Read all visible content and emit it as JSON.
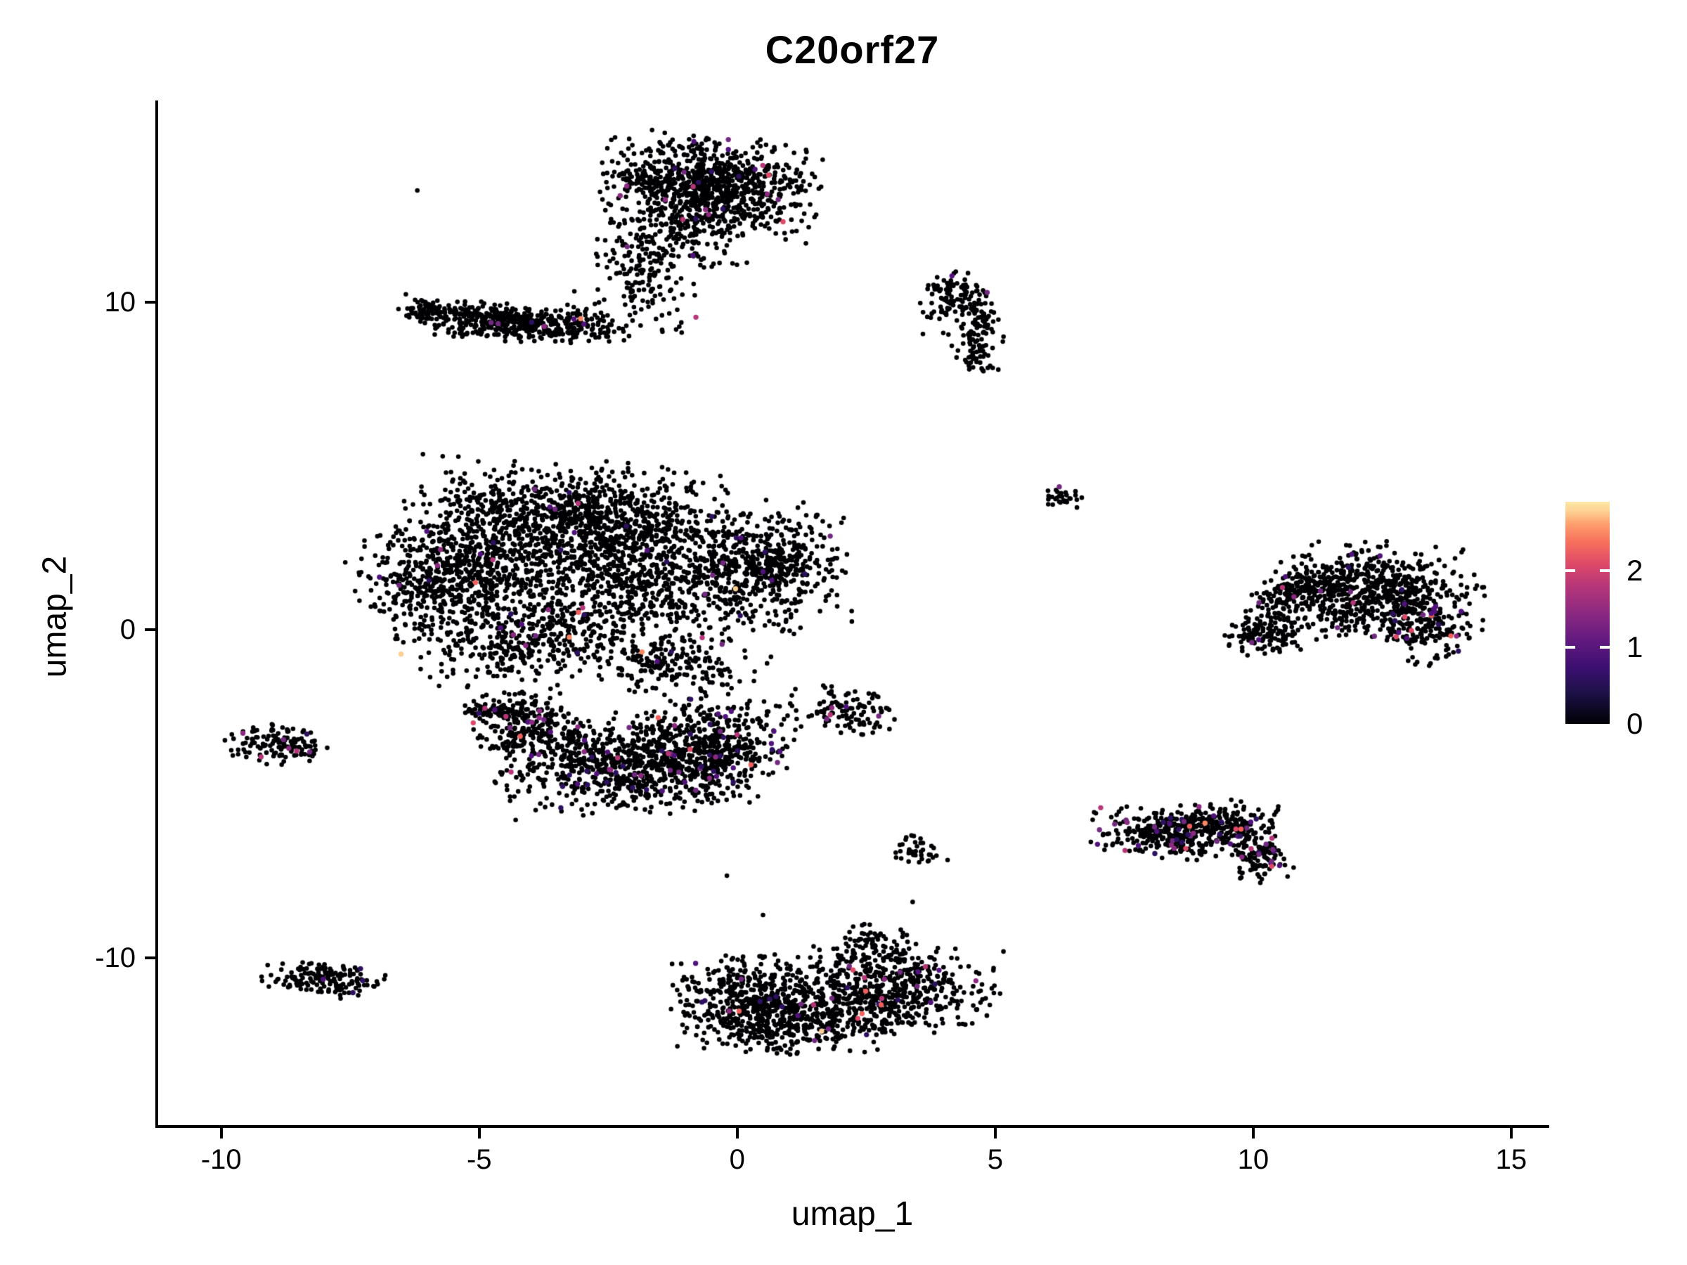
{
  "chart_data": {
    "type": "scatter",
    "title": "C20orf27",
    "xlabel": "umap_1",
    "ylabel": "umap_2",
    "x_ticks": [
      -10,
      -5,
      0,
      5,
      10,
      15
    ],
    "y_ticks": [
      -10,
      0,
      10
    ],
    "x_domain": [
      -11.25,
      15.71
    ],
    "y_domain": [
      -15.15,
      16.1
    ],
    "grid": false,
    "point_radius_px": 3.3,
    "point_color_default": "#000004",
    "colorbar": {
      "labels": [
        0,
        1,
        2
      ],
      "max_value": 2.9,
      "tick_dash_color": "#ffffff",
      "gradient_stops": [
        [
          0.0,
          "#000004"
        ],
        [
          0.14,
          "#1D1147"
        ],
        [
          0.25,
          "#3B0F70"
        ],
        [
          0.38,
          "#641A80"
        ],
        [
          0.5,
          "#8C2981"
        ],
        [
          0.62,
          "#B63679"
        ],
        [
          0.72,
          "#DE4968"
        ],
        [
          0.82,
          "#F7705C"
        ],
        [
          0.9,
          "#FE9F6D"
        ],
        [
          0.96,
          "#FED395"
        ],
        [
          1.0,
          "#FCE8A4"
        ]
      ]
    },
    "expressed_palette": [
      {
        "color": "#2D1160",
        "w": 3.0
      },
      {
        "color": "#51127C",
        "w": 3.0
      },
      {
        "color": "#722A81",
        "w": 2.2
      },
      {
        "color": "#8C2981",
        "w": 1.2
      },
      {
        "color": "#B63679",
        "w": 1.0
      },
      {
        "color": "#DE4968",
        "w": 0.5
      },
      {
        "color": "#F1605D",
        "w": 0.45
      },
      {
        "color": "#FB8861",
        "w": 0.12
      },
      {
        "color": "#FECF92",
        "w": 0.05
      }
    ],
    "clusters": [
      {
        "name": "top-blob-core",
        "cx": -0.55,
        "cy": 13.55,
        "sx": 0.95,
        "sy": 0.68,
        "rot": -8,
        "n": 950,
        "colored_fraction": 0.02
      },
      {
        "name": "top-blob-lower",
        "cx": -1.3,
        "cy": 11.9,
        "sx": 0.75,
        "sy": 0.55,
        "rot": 0,
        "n": 160,
        "colored_fraction": 0.012
      },
      {
        "name": "neck-bridge",
        "cx": -1.85,
        "cy": 10.6,
        "sx": 0.45,
        "sy": 0.75,
        "rot": 10,
        "n": 120,
        "colored_fraction": 0.008
      },
      {
        "name": "neck-diagonal",
        "cx": -2.9,
        "cy": 9.4,
        "sx": 0.45,
        "sy": 0.3,
        "rot": -30,
        "n": 60,
        "colored_fraction": 0.01
      },
      {
        "name": "left-wing",
        "cx": -4.35,
        "cy": 9.35,
        "sx": 0.85,
        "sy": 0.26,
        "rot": -6,
        "n": 430,
        "colored_fraction": 0.015
      },
      {
        "name": "left-wing-tip",
        "cx": -5.95,
        "cy": 9.75,
        "sx": 0.28,
        "sy": 0.18,
        "rot": -10,
        "n": 70,
        "colored_fraction": 0.02
      },
      {
        "name": "central-top-band",
        "cx": -3.1,
        "cy": 3.35,
        "sx": 1.5,
        "sy": 0.8,
        "rot": -4,
        "n": 1150,
        "colored_fraction": 0.012
      },
      {
        "name": "central-left-mass",
        "cx": -5.5,
        "cy": 1.5,
        "sx": 0.85,
        "sy": 0.85,
        "rot": 20,
        "n": 650,
        "colored_fraction": 0.012
      },
      {
        "name": "central-mid",
        "cx": -2.1,
        "cy": 1.3,
        "sx": 1.25,
        "sy": 0.85,
        "rot": 0,
        "n": 680,
        "colored_fraction": 0.014
      },
      {
        "name": "central-right-bulge",
        "cx": 0.55,
        "cy": 1.9,
        "sx": 0.75,
        "sy": 0.9,
        "rot": 0,
        "n": 520,
        "colored_fraction": 0.012
      },
      {
        "name": "central-bottomleft",
        "cx": -4.0,
        "cy": -0.5,
        "sx": 1.0,
        "sy": 0.5,
        "rot": 12,
        "n": 320,
        "colored_fraction": 0.015
      },
      {
        "name": "central-bottom-tail",
        "cx": -1.2,
        "cy": -1.1,
        "sx": 0.8,
        "sy": 0.45,
        "rot": -15,
        "n": 200,
        "colored_fraction": 0.02
      },
      {
        "name": "bowl-rim",
        "cx": -2.35,
        "cy": -4.1,
        "sx": 1.05,
        "sy": 0.7,
        "rot": 5,
        "n": 720,
        "colored_fraction": 0.05
      },
      {
        "name": "bowl-left-arc",
        "cx": -4.1,
        "cy": -2.9,
        "sx": 0.5,
        "sy": 0.55,
        "rot": 30,
        "n": 240,
        "colored_fraction": 0.05
      },
      {
        "name": "bowl-right-mass",
        "cx": -0.55,
        "cy": -3.6,
        "sx": 0.7,
        "sy": 0.75,
        "rot": -10,
        "n": 480,
        "colored_fraction": 0.04
      },
      {
        "name": "bowl-left-dash",
        "cx": -4.75,
        "cy": -2.45,
        "sx": 0.33,
        "sy": 0.1,
        "rot": 0,
        "n": 55,
        "colored_fraction": 0.02
      },
      {
        "name": "far-left-small",
        "cx": -8.85,
        "cy": -3.5,
        "sx": 0.5,
        "sy": 0.27,
        "rot": -5,
        "n": 135,
        "colored_fraction": 0.035
      },
      {
        "name": "far-left-bottom",
        "cx": -8.0,
        "cy": -10.65,
        "sx": 0.55,
        "sy": 0.25,
        "rot": -7,
        "n": 160,
        "colored_fraction": 0.035
      },
      {
        "name": "bottom-left-lobe",
        "cx": 0.35,
        "cy": -11.4,
        "sx": 0.72,
        "sy": 0.68,
        "rot": 0,
        "n": 550,
        "colored_fraction": 0.025
      },
      {
        "name": "bottom-right-lobe",
        "cx": 2.95,
        "cy": -10.95,
        "sx": 0.95,
        "sy": 0.62,
        "rot": -5,
        "n": 560,
        "colored_fraction": 0.03
      },
      {
        "name": "bottom-bridge",
        "cx": 1.6,
        "cy": -12.0,
        "sx": 0.8,
        "sy": 0.45,
        "rot": 0,
        "n": 220,
        "colored_fraction": 0.03
      },
      {
        "name": "bottom-top-bump",
        "cx": 2.6,
        "cy": -9.55,
        "sx": 0.33,
        "sy": 0.28,
        "rot": 0,
        "n": 60,
        "colored_fraction": 0.02
      },
      {
        "name": "tiny-comma",
        "cx": 3.45,
        "cy": -6.75,
        "sx": 0.3,
        "sy": 0.22,
        "rot": -45,
        "n": 38,
        "colored_fraction": 0.03
      },
      {
        "name": "small-mid-right",
        "cx": 2.1,
        "cy": -2.45,
        "sx": 0.5,
        "sy": 0.32,
        "rot": -10,
        "n": 115,
        "colored_fraction": 0.05
      },
      {
        "name": "crescent-top",
        "cx": 4.25,
        "cy": 10.35,
        "sx": 0.3,
        "sy": 0.26,
        "rot": -20,
        "n": 70,
        "colored_fraction": 0.01
      },
      {
        "name": "crescent-mid",
        "cx": 4.72,
        "cy": 9.55,
        "sx": 0.17,
        "sy": 0.38,
        "rot": 5,
        "n": 55,
        "colored_fraction": 0.02
      },
      {
        "name": "crescent-bottom",
        "cx": 4.6,
        "cy": 8.55,
        "sx": 0.2,
        "sy": 0.42,
        "rot": 10,
        "n": 65,
        "colored_fraction": 0.015
      },
      {
        "name": "crescent-scatter",
        "cx": 3.95,
        "cy": 9.8,
        "sx": 0.28,
        "sy": 0.35,
        "rot": 0,
        "n": 30,
        "colored_fraction": 0.01
      },
      {
        "name": "tiny-clump",
        "cx": 6.35,
        "cy": 4.05,
        "sx": 0.17,
        "sy": 0.14,
        "rot": 0,
        "n": 30,
        "colored_fraction": 0.06
      },
      {
        "name": "right-main",
        "cx": 12.35,
        "cy": 1.15,
        "sx": 0.95,
        "sy": 0.72,
        "rot": -5,
        "n": 620,
        "colored_fraction": 0.015
      },
      {
        "name": "right-arm",
        "cx": 10.95,
        "cy": 1.2,
        "sx": 0.62,
        "sy": 0.27,
        "rot": 35,
        "n": 190,
        "colored_fraction": 0.01
      },
      {
        "name": "right-knot",
        "cx": 10.25,
        "cy": -0.15,
        "sx": 0.4,
        "sy": 0.28,
        "rot": 10,
        "n": 130,
        "colored_fraction": 0.02
      },
      {
        "name": "right-edge-purple",
        "cx": 13.35,
        "cy": 0.1,
        "sx": 0.38,
        "sy": 0.55,
        "rot": 15,
        "n": 160,
        "colored_fraction": 0.09
      },
      {
        "name": "band-left-clump",
        "cx": 8.1,
        "cy": -6.15,
        "sx": 0.55,
        "sy": 0.35,
        "rot": -8,
        "n": 210,
        "colored_fraction": 0.09
      },
      {
        "name": "band-mid-arc",
        "cx": 9.3,
        "cy": -5.9,
        "sx": 0.55,
        "sy": 0.3,
        "rot": 8,
        "n": 190,
        "colored_fraction": 0.06
      },
      {
        "name": "band-right-tail",
        "cx": 10.05,
        "cy": -6.75,
        "sx": 0.26,
        "sy": 0.42,
        "rot": 20,
        "n": 130,
        "colored_fraction": 0.12
      },
      {
        "name": "band-mid-bottom",
        "cx": 8.7,
        "cy": -6.5,
        "sx": 0.4,
        "sy": 0.25,
        "rot": 0,
        "n": 60,
        "colored_fraction": 0.05
      }
    ],
    "stray_points": [
      [
        -6.2,
        13.4
      ],
      [
        0.5,
        -8.7
      ],
      [
        3.4,
        -8.3
      ],
      [
        -0.2,
        -7.5
      ]
    ]
  }
}
